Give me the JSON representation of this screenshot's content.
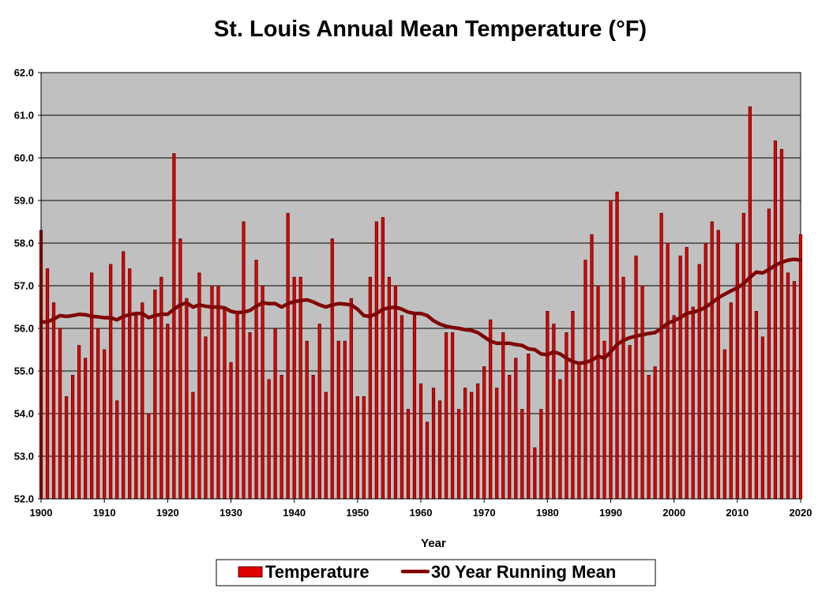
{
  "chart_data": {
    "type": "bar",
    "title": "St. Louis Annual Mean Temperature (°F)",
    "xlabel": "Year",
    "ylabel": "",
    "ylim": [
      52.0,
      62.0
    ],
    "ytick_labels": [
      "52.0",
      "53.0",
      "54.0",
      "55.0",
      "56.0",
      "57.0",
      "58.0",
      "59.0",
      "60.0",
      "61.0",
      "62.0"
    ],
    "xtick_labels": [
      "1900",
      "1910",
      "1920",
      "1930",
      "1940",
      "1950",
      "1960",
      "1970",
      "1980",
      "1990",
      "2000",
      "2010",
      "2020"
    ],
    "grid": true,
    "legend_position": "bottom",
    "colors": {
      "plot_background": "#c0c0c0",
      "bar_fill": "#e00000",
      "bar_stroke": "#5a0000",
      "running_mean": "#800000"
    },
    "x": [
      1900,
      1901,
      1902,
      1903,
      1904,
      1905,
      1906,
      1907,
      1908,
      1909,
      1910,
      1911,
      1912,
      1913,
      1914,
      1915,
      1916,
      1917,
      1918,
      1919,
      1920,
      1921,
      1922,
      1923,
      1924,
      1925,
      1926,
      1927,
      1928,
      1929,
      1930,
      1931,
      1932,
      1933,
      1934,
      1935,
      1936,
      1937,
      1938,
      1939,
      1940,
      1941,
      1942,
      1943,
      1944,
      1945,
      1946,
      1947,
      1948,
      1949,
      1950,
      1951,
      1952,
      1953,
      1954,
      1955,
      1956,
      1957,
      1958,
      1959,
      1960,
      1961,
      1962,
      1963,
      1964,
      1965,
      1966,
      1967,
      1968,
      1969,
      1970,
      1971,
      1972,
      1973,
      1974,
      1975,
      1976,
      1977,
      1978,
      1979,
      1980,
      1981,
      1982,
      1983,
      1984,
      1985,
      1986,
      1987,
      1988,
      1989,
      1990,
      1991,
      1992,
      1993,
      1994,
      1995,
      1996,
      1997,
      1998,
      1999,
      2000,
      2001,
      2002,
      2003,
      2004,
      2005,
      2006,
      2007,
      2008,
      2009,
      2010,
      2011,
      2012,
      2013,
      2014,
      2015,
      2016,
      2017,
      2018,
      2019,
      2020
    ],
    "series": [
      {
        "name": "Temperature",
        "kind": "bar",
        "values": [
          58.3,
          57.4,
          56.6,
          56.0,
          54.4,
          54.9,
          55.6,
          55.3,
          57.3,
          56.0,
          55.5,
          57.5,
          54.3,
          57.8,
          57.4,
          56.3,
          56.6,
          54.0,
          56.9,
          57.2,
          56.1,
          60.1,
          58.1,
          56.7,
          54.5,
          57.3,
          55.8,
          57.0,
          57.0,
          56.5,
          55.2,
          56.4,
          58.5,
          55.9,
          57.6,
          57.0,
          54.8,
          56.0,
          54.9,
          58.7,
          57.2,
          57.2,
          55.7,
          54.9,
          56.1,
          54.5,
          58.1,
          55.7,
          55.7,
          56.7,
          54.4,
          54.4,
          57.2,
          58.5,
          58.6,
          57.2,
          57.0,
          56.3,
          54.1,
          56.3,
          54.7,
          53.8,
          54.6,
          54.3,
          55.9,
          55.9,
          54.1,
          54.6,
          54.5,
          54.7,
          55.1,
          56.2,
          54.6,
          55.9,
          54.9,
          55.3,
          54.1,
          55.4,
          53.2,
          54.1,
          56.4,
          56.1,
          54.8,
          55.9,
          56.4,
          55.2,
          57.6,
          58.2,
          57.0,
          55.7,
          59.0,
          59.2,
          57.2,
          55.6,
          57.7,
          57.0,
          54.9,
          55.1,
          58.7,
          58.0,
          56.3,
          57.7,
          57.9,
          56.5,
          57.5,
          58.0,
          58.5,
          58.3,
          55.5,
          56.6,
          58.0,
          58.7,
          61.2,
          56.4,
          55.8,
          58.8,
          60.4,
          60.2,
          57.3,
          57.1,
          58.2
        ]
      },
      {
        "name": "30 Year Running Mean",
        "kind": "line",
        "values": [
          56.15,
          56.15,
          56.22,
          56.3,
          56.28,
          56.3,
          56.33,
          56.32,
          56.28,
          56.27,
          56.25,
          56.25,
          56.2,
          56.28,
          56.32,
          56.35,
          56.35,
          56.25,
          56.3,
          56.33,
          56.33,
          56.45,
          56.55,
          56.6,
          56.5,
          56.55,
          56.52,
          56.5,
          56.5,
          56.48,
          56.4,
          56.37,
          56.38,
          56.42,
          56.52,
          56.6,
          56.58,
          56.58,
          56.5,
          56.58,
          56.63,
          56.65,
          56.67,
          56.62,
          56.55,
          56.5,
          56.55,
          56.58,
          56.57,
          56.55,
          56.45,
          56.3,
          56.28,
          56.35,
          56.45,
          56.48,
          56.5,
          56.45,
          56.38,
          56.35,
          56.35,
          56.3,
          56.18,
          56.1,
          56.05,
          56.02,
          56.0,
          55.97,
          55.95,
          55.9,
          55.8,
          55.7,
          55.65,
          55.65,
          55.65,
          55.62,
          55.6,
          55.52,
          55.5,
          55.4,
          55.38,
          55.45,
          55.4,
          55.3,
          55.22,
          55.18,
          55.2,
          55.25,
          55.35,
          55.3,
          55.45,
          55.62,
          55.72,
          55.78,
          55.82,
          55.85,
          55.88,
          55.9,
          56.0,
          56.12,
          56.18,
          56.25,
          56.35,
          56.38,
          56.42,
          56.5,
          56.6,
          56.72,
          56.8,
          56.88,
          56.95,
          57.05,
          57.2,
          57.32,
          57.3,
          57.38,
          57.48,
          57.55,
          57.6,
          57.62,
          57.6
        ]
      }
    ]
  }
}
